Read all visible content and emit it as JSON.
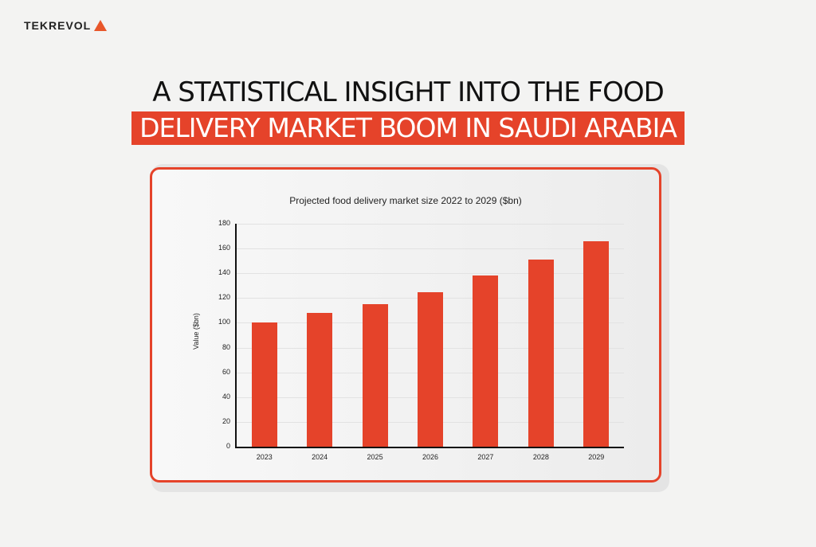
{
  "brand": {
    "name": "TEKREVOL",
    "accent": "#e5432a"
  },
  "header": {
    "line1": "A STATISTICAL INSIGHT INTO THE FOOD",
    "line2": "DELIVERY MARKET BOOM IN SAUDI ARABIA"
  },
  "chart_data": {
    "type": "bar",
    "title": "Projected food delivery market size 2022 to 2029 ($bn)",
    "xlabel": "",
    "ylabel": "Value ($bn)",
    "categories": [
      "2023",
      "2024",
      "2025",
      "2026",
      "2027",
      "2028",
      "2029"
    ],
    "values": [
      100,
      108,
      115,
      125,
      138,
      151,
      166
    ],
    "ylim": [
      0,
      180
    ],
    "yticks": [
      0,
      20,
      40,
      60,
      80,
      100,
      120,
      140,
      160,
      180
    ],
    "grid": true,
    "color": "#e5432a"
  }
}
